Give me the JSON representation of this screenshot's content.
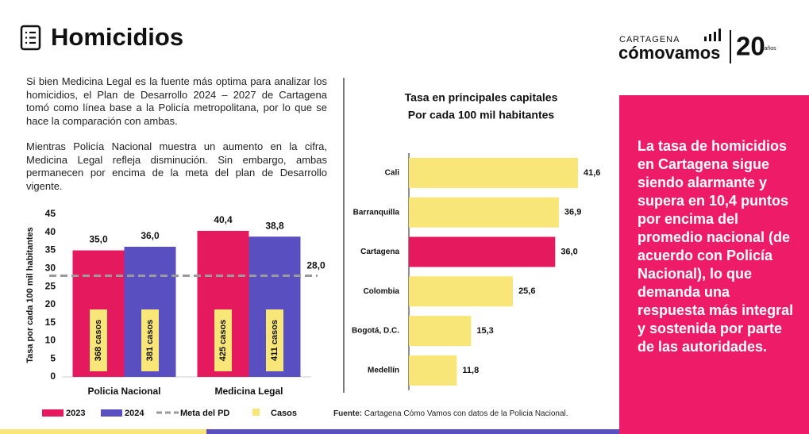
{
  "header": {
    "title": "Homicidios"
  },
  "logo": {
    "top": "CARTAGENA",
    "name": "cómovamos",
    "number": "20",
    "sub": "años"
  },
  "paragraphs": [
    "Si bien Medicina Legal es la fuente más optima para analizar los homicidios, el Plan de Desarrollo 2024 – 2027 de Cartagena tomó como línea base a la Policía metropolitana, por lo que se hace la comparación con ambas.",
    "Mientras Policía Nacional muestra un aumento en la cifra, Medicina Legal refleja disminución. Sin embargo, ambas permanecen por encima de la meta del plan de Desarrollo vigente."
  ],
  "callout": "La tasa de homicidios en Cartagena sigue siendo alarmante y supera en 10,4 puntos por encima del promedio nacional (de acuerdo con Policía Nacional), lo que demanda una respuesta más integral y sostenida por parte de las autoridades.",
  "source": {
    "label": "Fuente:",
    "text": "Cartagena Cómo Vamos con datos de la Policia Nacional."
  },
  "chart_data": [
    {
      "type": "bar",
      "y_label": "Tasa por cada 100 mil habitantes",
      "categories": [
        "Policia Nacional",
        "Medicina Legal"
      ],
      "series": [
        {
          "name": "2023",
          "color": "#e5195e",
          "values": [
            35.0,
            40.4
          ],
          "value_labels": [
            "35,0",
            "40,4"
          ],
          "cases": [
            368,
            425
          ],
          "cases_labels": [
            "368 casos",
            "425 casos"
          ]
        },
        {
          "name": "2024",
          "color": "#5a4fc0",
          "values": [
            36.0,
            38.8
          ],
          "value_labels": [
            "36,0",
            "38,8"
          ],
          "cases": [
            381,
            411
          ],
          "cases_labels": [
            "381 casos",
            "411 casos"
          ]
        }
      ],
      "cases_legend": {
        "name": "Casos",
        "color": "#f9e679"
      },
      "target": {
        "name": "Meta del PD",
        "value": 28.0,
        "label": "28,0",
        "color": "#9a9a9a"
      },
      "ylim": [
        0,
        45
      ],
      "yticks": [
        0,
        5,
        10,
        15,
        20,
        25,
        30,
        35,
        40,
        45
      ]
    },
    {
      "type": "hbar",
      "title": [
        "Tasa en principales capitales",
        "Por cada 100 mil habitantes"
      ],
      "categories": [
        "Cali",
        "Barranquilla",
        "Cartagena",
        "Colombia",
        "Bogotá, D.C.",
        "Medellín"
      ],
      "values": [
        41.6,
        36.9,
        36.0,
        25.6,
        15.3,
        11.8
      ],
      "value_labels": [
        "41,6",
        "36,9",
        "36,0",
        "25,6",
        "15,3",
        "11,8"
      ],
      "colors": [
        "#f9e679",
        "#f9e679",
        "#e5195e",
        "#f9e679",
        "#f9e679",
        "#f9e679"
      ]
    }
  ]
}
